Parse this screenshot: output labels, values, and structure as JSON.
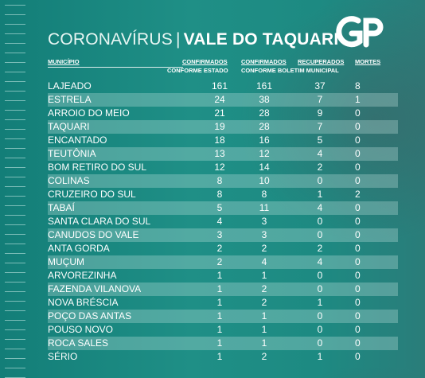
{
  "title": {
    "prefix": "CORONAVÍRUS",
    "separator": "|",
    "region": "VALE DO TAQUARI"
  },
  "logo": {
    "text": "GP"
  },
  "headers": {
    "municipio": "MUNICÍPIO",
    "confirmados_estado_1": "CONFIRMADOS",
    "confirmados_estado_2": "CONFORME ESTADO",
    "confirmados_boletim_1": "CONFIRMADOS",
    "recuperados": "RECUPERADOS",
    "confirmados_boletim_2": "CONFORME BOLETIM MUNICIPAL",
    "mortes": "MORTES"
  },
  "rows": [
    {
      "municipio": "LAJEADO",
      "estado": "161",
      "boletim": "161",
      "recuperados": "37",
      "mortes": "8"
    },
    {
      "municipio": "ESTRELA",
      "estado": "24",
      "boletim": "38",
      "recuperados": "7",
      "mortes": "1"
    },
    {
      "municipio": "ARROIO DO MEIO",
      "estado": "21",
      "boletim": "28",
      "recuperados": "9",
      "mortes": "0"
    },
    {
      "municipio": "TAQUARI",
      "estado": "19",
      "boletim": "28",
      "recuperados": "7",
      "mortes": "0"
    },
    {
      "municipio": "ENCANTADO",
      "estado": "18",
      "boletim": "16",
      "recuperados": "5",
      "mortes": "0"
    },
    {
      "municipio": "TEUTÔNIA",
      "estado": "13",
      "boletim": "12",
      "recuperados": "4",
      "mortes": "0"
    },
    {
      "municipio": "BOM RETIRO DO SUL",
      "estado": "12",
      "boletim": "14",
      "recuperados": "2",
      "mortes": "0"
    },
    {
      "municipio": "COLINAS",
      "estado": "8",
      "boletim": "10",
      "recuperados": "0",
      "mortes": "0"
    },
    {
      "municipio": "CRUZEIRO DO SUL",
      "estado": "8",
      "boletim": "8",
      "recuperados": "1",
      "mortes": "2"
    },
    {
      "municipio": "TABAÍ",
      "estado": "5",
      "boletim": "11",
      "recuperados": "4",
      "mortes": "0"
    },
    {
      "municipio": "SANTA CLARA DO SUL",
      "estado": "4",
      "boletim": "3",
      "recuperados": "0",
      "mortes": "0"
    },
    {
      "municipio": "CANUDOS DO VALE",
      "estado": "3",
      "boletim": "3",
      "recuperados": "0",
      "mortes": "0"
    },
    {
      "municipio": "ANTA GORDA",
      "estado": "2",
      "boletim": "2",
      "recuperados": "2",
      "mortes": "0"
    },
    {
      "municipio": "MUÇUM",
      "estado": "2",
      "boletim": "4",
      "recuperados": "4",
      "mortes": "0"
    },
    {
      "municipio": "ARVOREZINHA",
      "estado": "1",
      "boletim": "1",
      "recuperados": "0",
      "mortes": "0"
    },
    {
      "municipio": "FAZENDA VILANOVA",
      "estado": "1",
      "boletim": "2",
      "recuperados": "0",
      "mortes": "0"
    },
    {
      "municipio": "NOVA BRÉSCIA",
      "estado": "1",
      "boletim": "2",
      "recuperados": "1",
      "mortes": "0"
    },
    {
      "municipio": "POÇO DAS ANTAS",
      "estado": "1",
      "boletim": "1",
      "recuperados": "0",
      "mortes": "0"
    },
    {
      "municipio": "POUSO NOVO",
      "estado": "1",
      "boletim": "1",
      "recuperados": "0",
      "mortes": "0"
    },
    {
      "municipio": "ROCA SALES",
      "estado": "1",
      "boletim": "1",
      "recuperados": "0",
      "mortes": "0"
    },
    {
      "municipio": "SÉRIO",
      "estado": "1",
      "boletim": "2",
      "recuperados": "1",
      "mortes": "0"
    }
  ]
}
